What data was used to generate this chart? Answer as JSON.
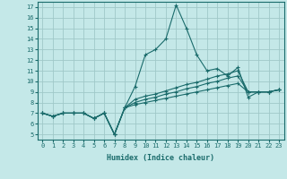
{
  "xlabel": "Humidex (Indice chaleur)",
  "bg_color": "#c4e8e8",
  "line_color": "#1a6b6b",
  "grid_color": "#a0c8c8",
  "xlim": [
    -0.5,
    23.5
  ],
  "ylim": [
    4.5,
    17.5
  ],
  "xticks": [
    0,
    1,
    2,
    3,
    4,
    5,
    6,
    7,
    8,
    9,
    10,
    11,
    12,
    13,
    14,
    15,
    16,
    17,
    18,
    19,
    20,
    21,
    22,
    23
  ],
  "yticks": [
    5,
    6,
    7,
    8,
    9,
    10,
    11,
    12,
    13,
    14,
    15,
    16,
    17
  ],
  "series": [
    [
      7.0,
      6.7,
      7.0,
      7.0,
      7.0,
      6.5,
      7.0,
      5.0,
      7.5,
      9.5,
      12.5,
      13.0,
      14.0,
      17.2,
      15.0,
      12.5,
      11.0,
      11.2,
      10.5,
      11.3,
      8.5,
      9.0,
      9.0,
      9.2
    ],
    [
      7.0,
      6.7,
      7.0,
      7.0,
      7.0,
      6.5,
      7.0,
      5.0,
      7.5,
      8.3,
      8.6,
      8.8,
      9.1,
      9.4,
      9.7,
      9.9,
      10.2,
      10.5,
      10.7,
      11.0,
      9.0,
      9.0,
      9.0,
      9.2
    ],
    [
      7.0,
      6.7,
      7.0,
      7.0,
      7.0,
      6.5,
      7.0,
      5.0,
      7.5,
      8.0,
      8.3,
      8.5,
      8.8,
      9.0,
      9.3,
      9.5,
      9.8,
      10.0,
      10.3,
      10.5,
      9.0,
      9.0,
      9.0,
      9.2
    ],
    [
      7.0,
      6.7,
      7.0,
      7.0,
      7.0,
      6.5,
      7.0,
      5.0,
      7.5,
      7.8,
      8.0,
      8.2,
      8.4,
      8.6,
      8.8,
      9.0,
      9.2,
      9.4,
      9.6,
      9.8,
      9.0,
      9.0,
      9.0,
      9.2
    ]
  ],
  "marker": "+",
  "markersize": 3.5,
  "linewidth": 0.8,
  "tick_fontsize": 5.0,
  "xlabel_fontsize": 6.0
}
